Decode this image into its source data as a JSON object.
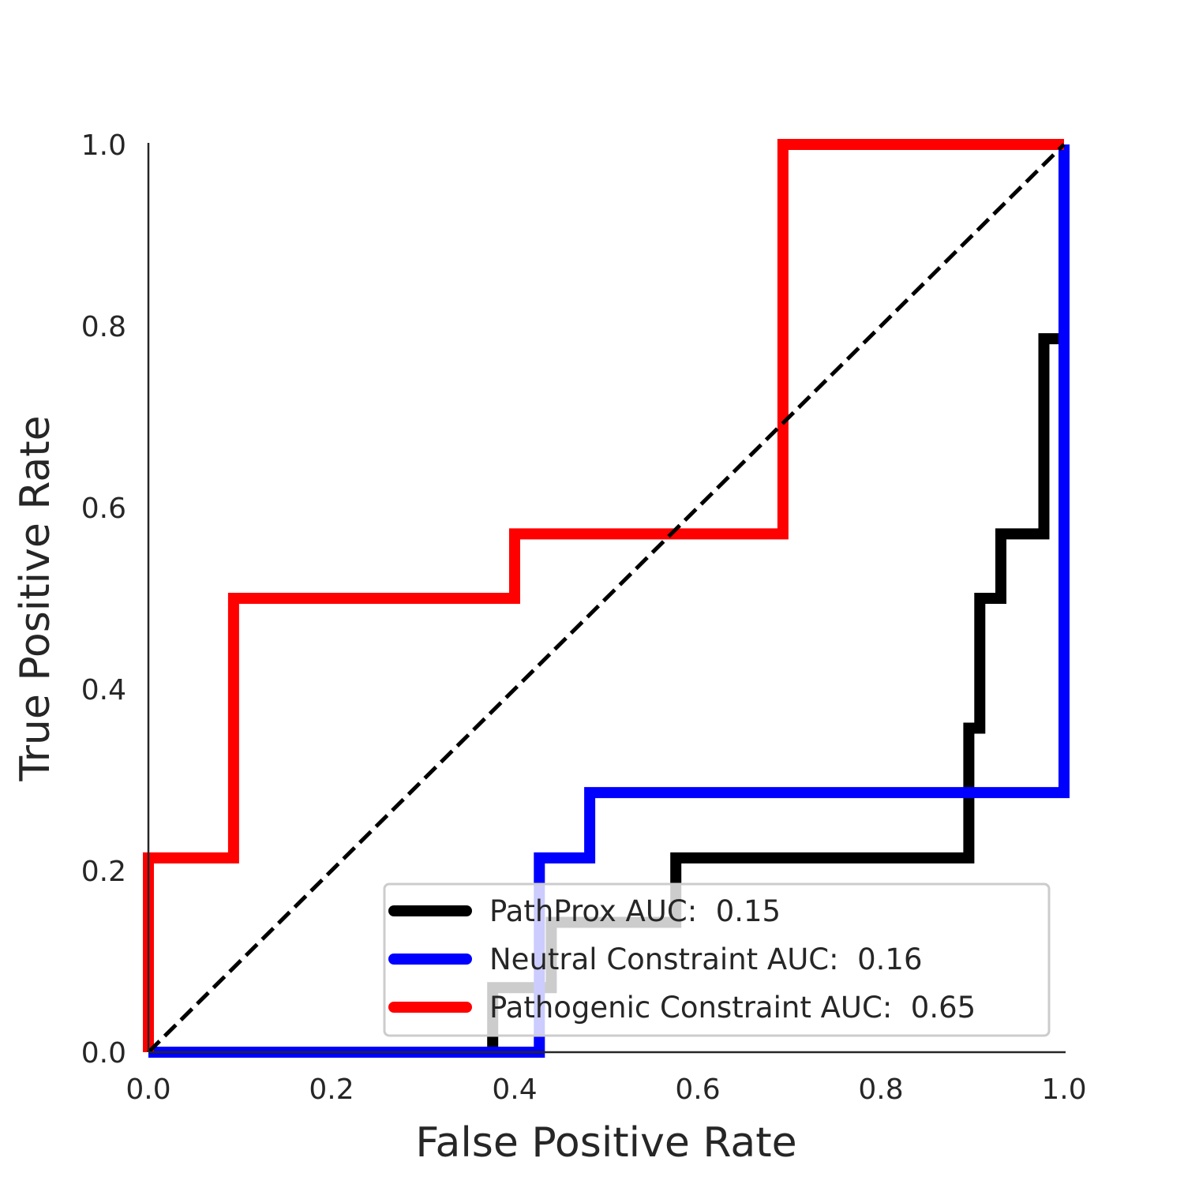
{
  "chart_data": {
    "type": "line",
    "xlabel": "False Positive Rate",
    "ylabel": "True Positive Rate",
    "xlim": [
      0,
      1
    ],
    "ylim": [
      0,
      1
    ],
    "x_ticks": [
      "0.0",
      "0.2",
      "0.4",
      "0.6",
      "0.8",
      "1.0"
    ],
    "y_ticks": [
      "0.0",
      "0.2",
      "0.4",
      "0.6",
      "0.8",
      "1.0"
    ],
    "grid": false,
    "legend_position": "lower-right",
    "reference_line": {
      "x": [
        0,
        1
      ],
      "y": [
        0,
        1
      ],
      "style": "dashed",
      "color": "#000000"
    },
    "series": [
      {
        "name": "PathProx AUC:  0.15",
        "color": "#000000",
        "x": [
          0.376,
          0.376,
          0.376,
          0.376,
          0.44,
          0.44,
          0.576,
          0.576,
          0.896,
          0.896,
          0.908,
          0.908,
          0.931,
          0.931,
          0.978,
          0.978,
          1.0
        ],
        "y": [
          0.0,
          0.0,
          0.071,
          0.071,
          0.071,
          0.143,
          0.143,
          0.214,
          0.214,
          0.357,
          0.357,
          0.5,
          0.5,
          0.571,
          0.571,
          0.786,
          0.786
        ]
      },
      {
        "name": "Neutral Constraint AUC:  0.16",
        "color": "#0000ff",
        "x": [
          0.0,
          0.427,
          0.427,
          0.482,
          0.482,
          1.0,
          1.0
        ],
        "y": [
          0.0,
          0.0,
          0.214,
          0.214,
          0.286,
          0.286,
          1.0
        ]
      },
      {
        "name": "Pathogenic Constraint AUC:  0.65",
        "color": "#ff0000",
        "x": [
          0.0,
          0.0,
          0.093,
          0.093,
          0.4,
          0.4,
          0.693,
          0.693,
          1.0
        ],
        "y": [
          0.0,
          0.214,
          0.214,
          0.5,
          0.5,
          0.571,
          0.571,
          1.0,
          1.0
        ]
      }
    ]
  }
}
